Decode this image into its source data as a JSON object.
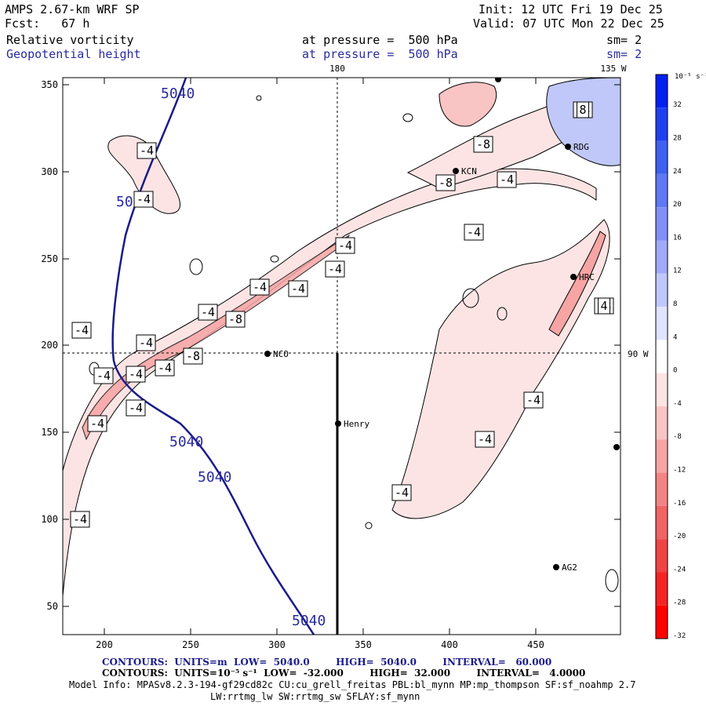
{
  "header": {
    "model": "AMPS 2.67-km WRF SP",
    "init": "Init: 12 UTC Fri 19 Dec 25",
    "fcst": "Fcst:   67 h",
    "valid": "Valid: 07 UTC Mon 22 Dec 25",
    "field1": "Relative vorticity",
    "field1_level": "at pressure =  500 hPa",
    "field1_sm": "sm= 2",
    "field2": "Geopotential height",
    "field2_level": "at pressure =  500 hPa",
    "field2_sm": "sm= 2"
  },
  "map": {
    "x_ticks": [
      "200",
      "250",
      "300",
      "350",
      "400",
      "450"
    ],
    "y_ticks": [
      "350",
      "300",
      "250",
      "200",
      "150",
      "100",
      "50"
    ],
    "meridian_label_top": "180",
    "corner_label_top": "135 W",
    "parallel_label_right": "90 W",
    "stations": [
      {
        "name": "NCO"
      },
      {
        "name": "Henry"
      },
      {
        "name": "KCN"
      },
      {
        "name": "RDG"
      },
      {
        "name": "HRC"
      },
      {
        "name": "AG2"
      }
    ],
    "height_contour_labels": [
      "5040",
      "5040",
      "5040",
      "5040",
      "5040"
    ],
    "vorticity_labels": [
      "-4",
      "-4",
      "-4",
      "-4",
      "-4",
      "-4",
      "-4",
      "-8",
      "-4",
      "-4",
      "-4",
      "-4",
      "-4",
      "-8",
      "-4",
      "-4",
      "-8",
      "-8",
      "-4",
      "-4",
      "-4",
      "-4",
      "-4",
      "-4",
      "-4",
      "-4",
      "-4",
      "8",
      "4"
    ]
  },
  "colorbar": {
    "units": "10⁻⁵ s⁻¹",
    "ticks": [
      "32",
      "28",
      "24",
      "20",
      "16",
      "12",
      "8",
      "4",
      "0",
      "-4",
      "-8",
      "-12",
      "-16",
      "-20",
      "-24",
      "-28",
      "-32"
    ],
    "colors": [
      "#0020f0",
      "#2040f0",
      "#4060f0",
      "#6078f4",
      "#8090f6",
      "#a0aaf8",
      "#c0c8fa",
      "#e0e4fe",
      "#ffffff",
      "#fde4e4",
      "#f9c4c4",
      "#f6a4a4",
      "#f38484",
      "#f06464",
      "#f04444",
      "#f42424",
      "#ff0000"
    ]
  },
  "footer": {
    "line1": "CONTOURS:  UNITS=m  LOW=  5040.0        HIGH=  5040.0        INTERVAL=   60.000",
    "line2": "CONTOURS:  UNITS=10⁻⁵ s⁻¹  LOW=  -32.000        HIGH=  32.000        INTERVAL=   4.0000",
    "line3": "Model Info: MPASv8.2.3-194-gf29cd82c CU:cu_grell_freitas PBL:bl_mynn MP:mp_thompson SF:sf_noahmp 2.7",
    "line4": "LW:rrtmg_lw SW:rrtmg_sw SFLAY:sf_mynn"
  }
}
